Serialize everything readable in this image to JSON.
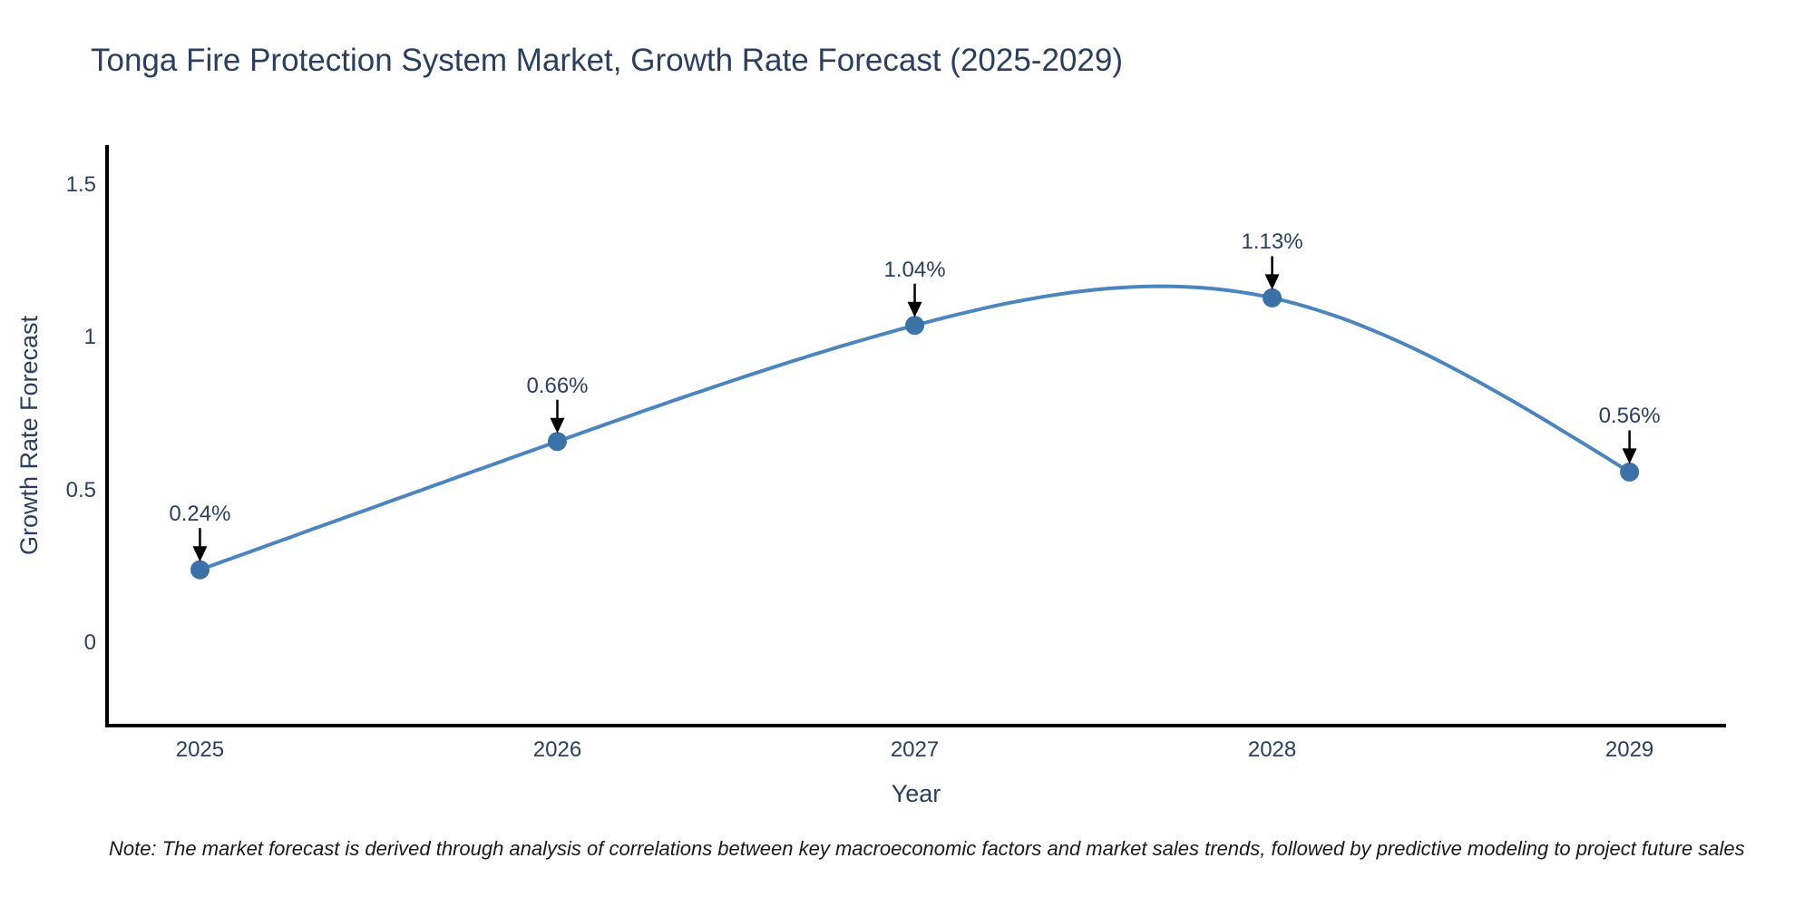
{
  "title": "Tonga Fire Protection System Market, Growth Rate Forecast (2025-2029)",
  "note": "Note: The market forecast is derived through analysis of correlations between key macroeconomic factors and market sales trends, followed by predictive modeling to project future sales",
  "chart_data": {
    "type": "line",
    "title": "Tonga Fire Protection System Market, Growth Rate Forecast (2025-2029)",
    "xlabel": "Year",
    "ylabel": "Growth Rate Forecast",
    "categories": [
      "2025",
      "2026",
      "2027",
      "2028",
      "2029"
    ],
    "x": [
      2025,
      2026,
      2027,
      2028,
      2029
    ],
    "values": [
      0.24,
      0.66,
      1.04,
      1.13,
      0.56
    ],
    "point_labels": [
      "0.24%",
      "0.66%",
      "1.04%",
      "1.13%",
      "0.56%"
    ],
    "yticks": [
      0,
      0.5,
      1,
      1.5
    ],
    "ytick_labels": [
      "0",
      "0.5",
      "1",
      "1.5"
    ],
    "xlim": [
      2024.74,
      2029.27
    ],
    "ylim": [
      -0.27,
      1.63
    ],
    "grid": false,
    "legend": false,
    "line_shape": "spline",
    "marker": "circle",
    "annotation_arrows": true,
    "colors": {
      "line": "#4a86bd",
      "marker": "#3a71a6",
      "axis": "#000000",
      "arrow": "#000000",
      "text": "#2a3f5f"
    }
  }
}
